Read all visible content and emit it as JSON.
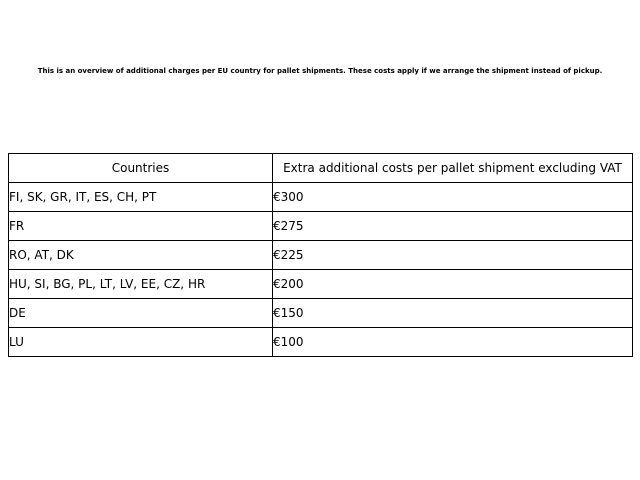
{
  "caption": "This is an overview of additional charges per EU country for pallet shipments. These costs apply if we arrange the shipment instead of pickup.",
  "table": {
    "headers": [
      "Countries",
      "Extra additional costs per pallet shipment excluding VAT"
    ],
    "rows": [
      {
        "countries": "FI, SK, GR, IT, ES, CH, PT",
        "cost": "€300"
      },
      {
        "countries": "FR",
        "cost": "€275"
      },
      {
        "countries": "RO, AT, DK",
        "cost": "€225"
      },
      {
        "countries": "HU, SI, BG, PL, LT, LV, EE, CZ, HR",
        "cost": "€200"
      },
      {
        "countries": "DE",
        "cost": "€150"
      },
      {
        "countries": "LU",
        "cost": "€100"
      }
    ]
  },
  "chart_data": {
    "type": "table",
    "title": "This is an overview of additional charges per EU country for pallet shipments. These costs apply if we arrange the shipment instead of pickup.",
    "columns": [
      "Countries",
      "Extra additional costs per pallet shipment excluding VAT"
    ],
    "rows": [
      [
        "FI, SK, GR, IT, ES, CH, PT",
        "€300"
      ],
      [
        "FR",
        "€275"
      ],
      [
        "RO, AT, DK",
        "€225"
      ],
      [
        "HU, SI, BG, PL, LT, LV, EE, CZ, HR",
        "€200"
      ],
      [
        "DE",
        "€150"
      ],
      [
        "LU",
        "€100"
      ]
    ],
    "values_eur": [
      300,
      275,
      225,
      200,
      150,
      100
    ],
    "currency": "EUR",
    "layout": {
      "grid": true,
      "header_row": true,
      "legend_position": "none"
    }
  },
  "colors": {
    "background": "#ffffff",
    "border": "#000000",
    "text": "#000000"
  }
}
